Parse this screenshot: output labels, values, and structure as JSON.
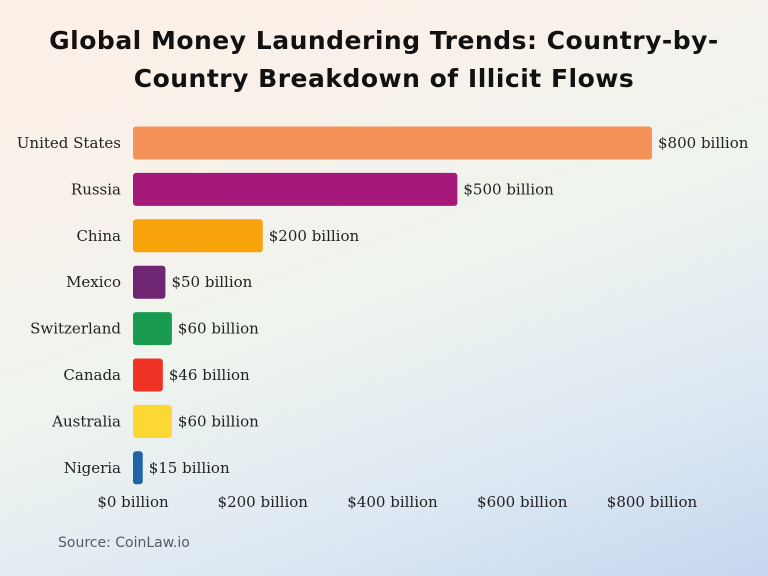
{
  "chart_data": {
    "type": "bar",
    "orientation": "horizontal",
    "title_lines": [
      "Global Money Laundering Trends: Country-by-",
      "Country Breakdown of Illicit Flows"
    ],
    "categories": [
      "United States",
      "Russia",
      "China",
      "Mexico",
      "Switzerland",
      "Canada",
      "Australia",
      "Nigeria"
    ],
    "values": [
      800,
      500,
      200,
      50,
      60,
      46,
      60,
      15
    ],
    "value_labels": [
      "$800 billion",
      "$500 billion",
      "$200 billion",
      "$50 billion",
      "$60 billion",
      "$46 billion",
      "$60 billion",
      "$15 billion"
    ],
    "colors": [
      "#f5925a",
      "#a6197a",
      "#f8a30b",
      "#6e2672",
      "#1a9a50",
      "#ee3325",
      "#fdd835",
      "#1f63a8"
    ],
    "xlim": [
      0,
      800
    ],
    "x_ticks": [
      0,
      200,
      400,
      600,
      800
    ],
    "x_tick_labels": [
      "$0 billion",
      "$200 billion",
      "$400 billion",
      "$600 billion",
      "$800 billion"
    ],
    "grid": false,
    "legend": "none"
  },
  "source": "Source: CoinLaw.io"
}
